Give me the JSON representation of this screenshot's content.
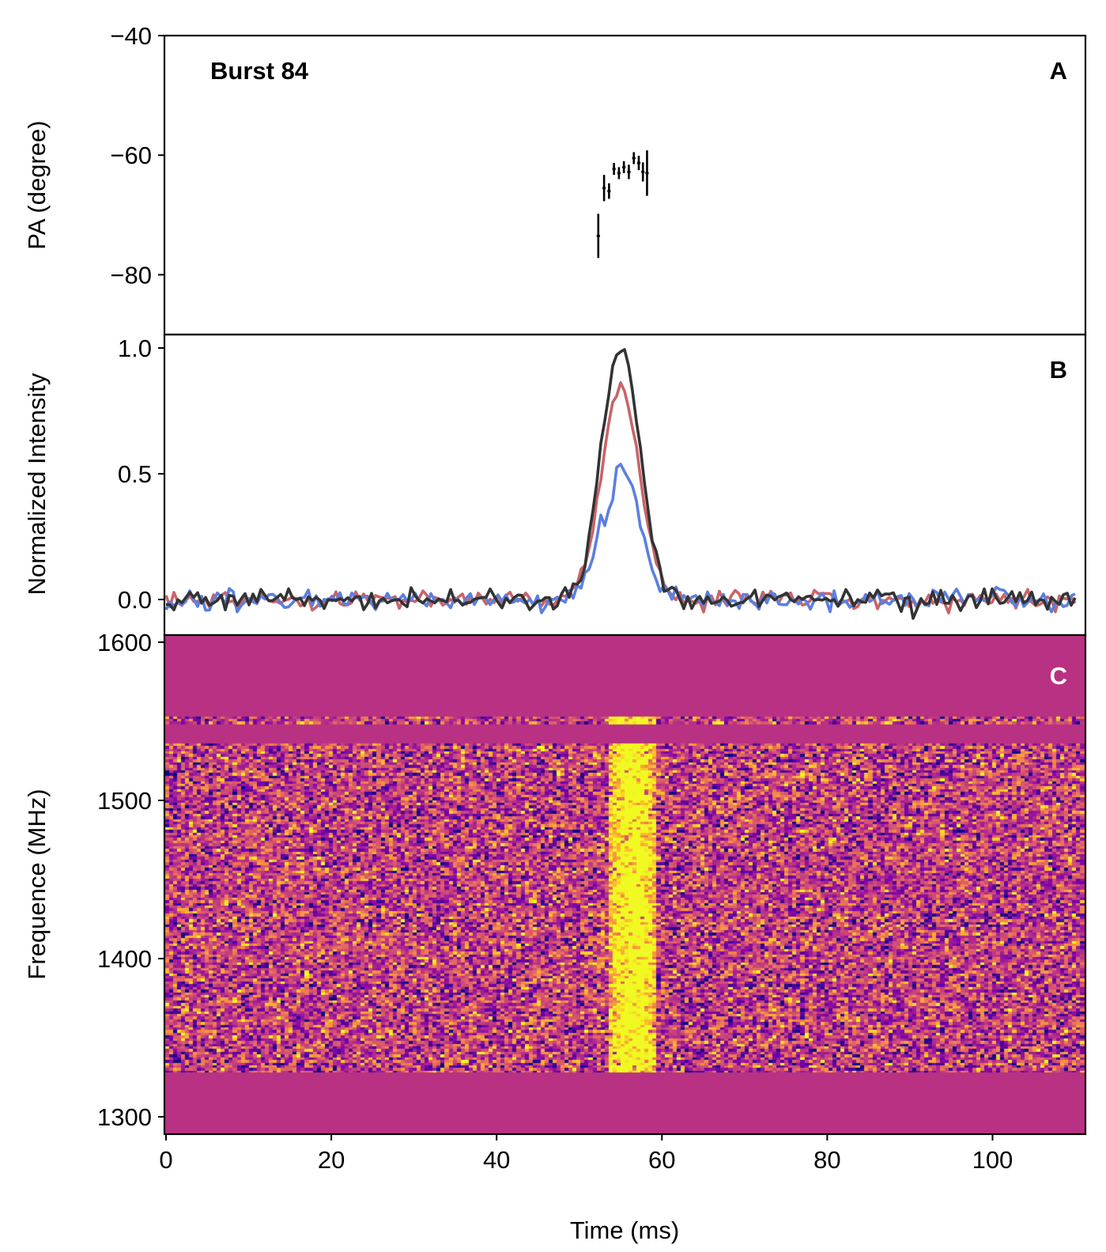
{
  "chart_data": [
    {
      "panel": "A",
      "type": "scatter",
      "annotation": "Burst 84",
      "ylabel": "PA (degree)",
      "ylim": [
        -90,
        -40
      ],
      "xlim": [
        0,
        110
      ],
      "yticks": [
        -40,
        -60,
        -80
      ],
      "ytick_labels": [
        "−40",
        "−60",
        "−80"
      ],
      "points": [
        {
          "x": 52.3,
          "y": -73.5,
          "err": 3.7
        },
        {
          "x": 53.0,
          "y": -65.5,
          "err": 2.2
        },
        {
          "x": 53.6,
          "y": -66.0,
          "err": 1.3
        },
        {
          "x": 54.2,
          "y": -62.3,
          "err": 1.0
        },
        {
          "x": 54.8,
          "y": -63.0,
          "err": 1.0
        },
        {
          "x": 55.4,
          "y": -62.0,
          "err": 1.0
        },
        {
          "x": 56.0,
          "y": -62.8,
          "err": 1.2
        },
        {
          "x": 56.6,
          "y": -60.5,
          "err": 1.0
        },
        {
          "x": 57.2,
          "y": -61.3,
          "err": 1.2
        },
        {
          "x": 57.7,
          "y": -62.8,
          "err": 1.6
        },
        {
          "x": 58.2,
          "y": -63.0,
          "err": 3.8
        }
      ],
      "color": "#000000"
    },
    {
      "panel": "B",
      "type": "line",
      "ylabel": "Normalized Intensity",
      "ylim": [
        -0.07,
        1.05
      ],
      "xlim": [
        0,
        110
      ],
      "yticks": [
        0.0,
        0.5,
        1.0
      ],
      "ytick_labels": [
        "0.0",
        "0.5",
        "1.0"
      ],
      "pulse": {
        "t0": 55.0,
        "width_ms": 2.3
      },
      "series": [
        {
          "color": "#333333",
          "peak": 1.0,
          "noise": 0.02
        },
        {
          "color": "#c96468",
          "peak": 0.84,
          "noise": 0.018
        },
        {
          "color": "#5b7fe0",
          "peak": 0.53,
          "noise": 0.018
        }
      ]
    },
    {
      "panel": "C",
      "type": "heatmap",
      "ylabel": "Frequence (MHz)",
      "xlabel": "Time (ms)",
      "xlim": [
        0,
        110
      ],
      "ylim": [
        1292,
        1600
      ],
      "xticks": [
        0,
        20,
        40,
        60,
        80,
        100
      ],
      "xtick_labels": [
        "0",
        "20",
        "40",
        "60",
        "80",
        "100"
      ],
      "yticks": [
        1300,
        1400,
        1500,
        1600
      ],
      "ytick_labels": [
        "1300",
        "1400",
        "1500",
        "1600"
      ],
      "colormap": "plasma",
      "masked_color": "#b93183",
      "masked_bands_mhz": [
        [
          1553,
          1600
        ],
        [
          1536,
          1548
        ],
        [
          1292,
          1328
        ]
      ],
      "burst": {
        "t_start_ms": 53.0,
        "t_end_ms": 59.0,
        "f_low_mhz": 1328,
        "f_high_mhz": 1557
      }
    }
  ],
  "labels": {
    "panel_a": "A",
    "panel_b": "B",
    "panel_c": "C",
    "burst_label": "Burst 84",
    "pa_ylabel": "PA (degree)",
    "intensity_ylabel": "Normalized Intensity",
    "freq_ylabel": "Frequence (MHz)",
    "time_xlabel": "Time (ms)"
  }
}
